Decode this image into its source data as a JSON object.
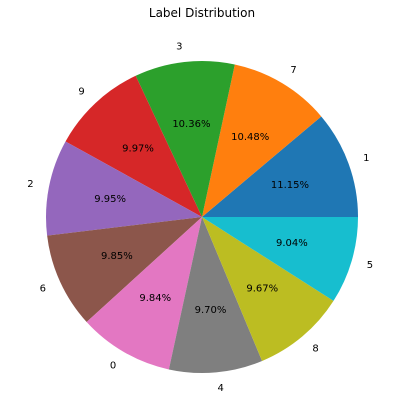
{
  "chart_data": {
    "type": "pie",
    "title": "Label Distribution",
    "labels": [
      "1",
      "7",
      "3",
      "9",
      "2",
      "6",
      "0",
      "4",
      "8",
      "5"
    ],
    "values": [
      11.15,
      10.48,
      10.36,
      9.97,
      9.95,
      9.85,
      9.84,
      9.7,
      9.67,
      9.04
    ],
    "percent_labels": [
      "11.15%",
      "10.48%",
      "10.36%",
      "9.97%",
      "9.95%",
      "9.85%",
      "9.84%",
      "9.70%",
      "9.67%",
      "9.04%"
    ],
    "colors": [
      "#1f77b4",
      "#ff7f0e",
      "#2ca02c",
      "#d62728",
      "#9467bd",
      "#8c564b",
      "#e377c2",
      "#7f7f7f",
      "#bcbd22",
      "#17becf"
    ],
    "start_angle_deg": 0,
    "direction": "counterclockwise"
  }
}
